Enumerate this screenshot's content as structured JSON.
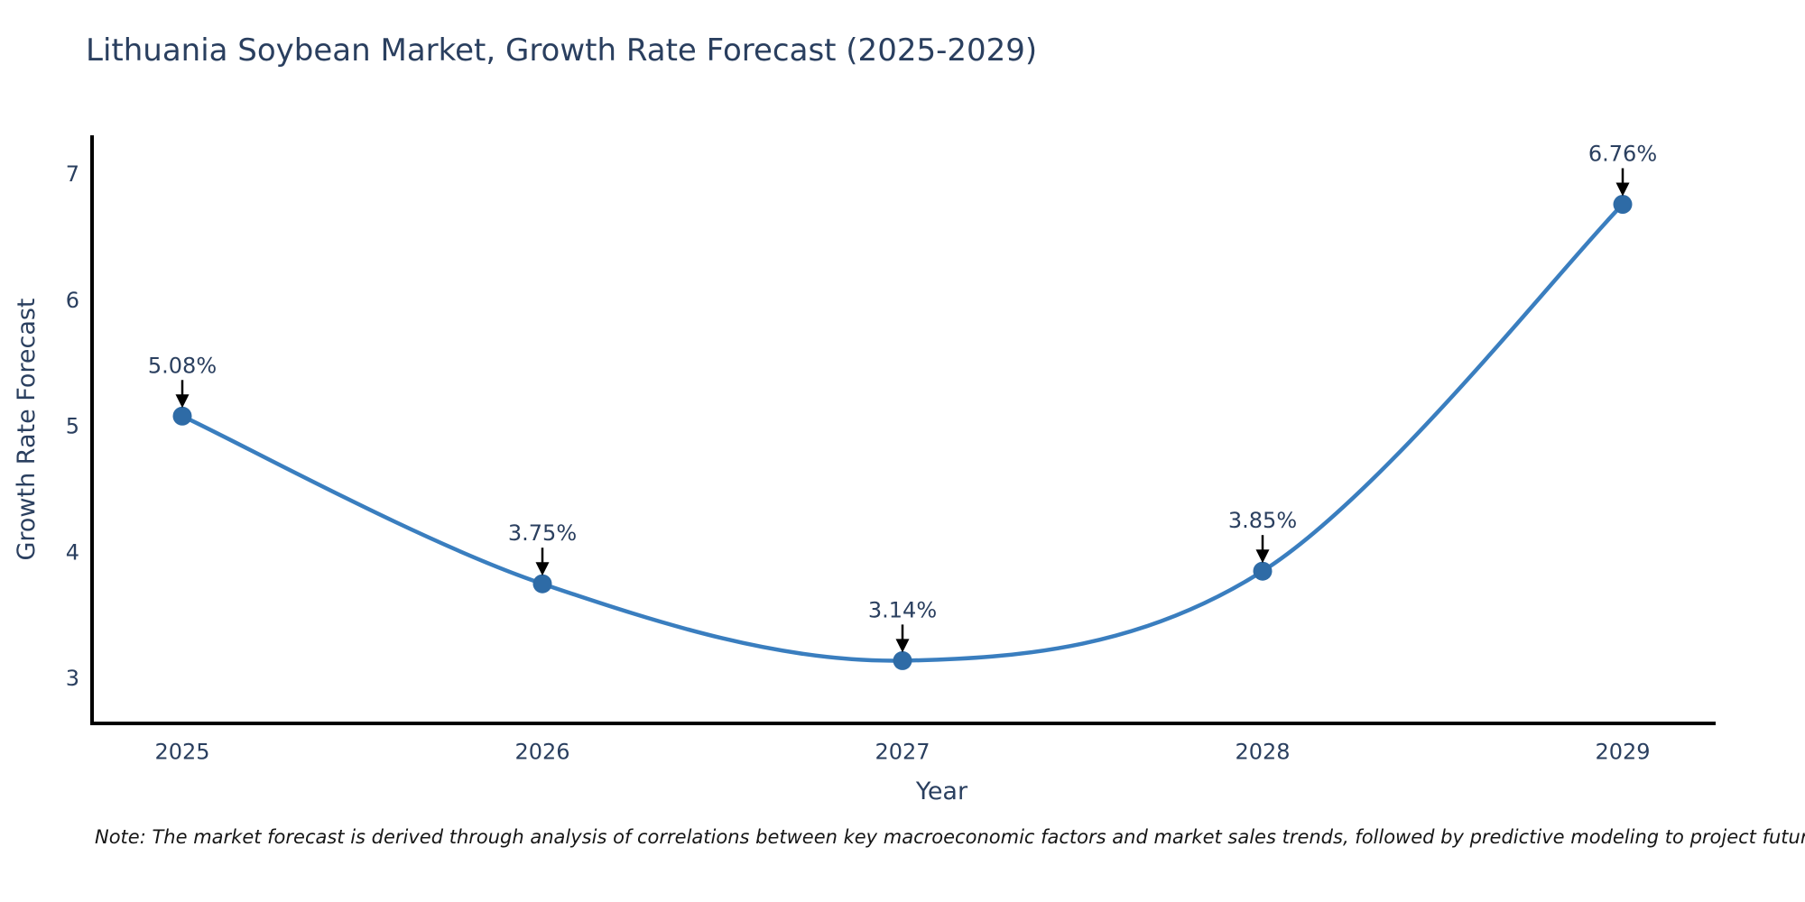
{
  "chart_data": {
    "type": "line",
    "title": "Lithuania Soybean Market, Growth Rate Forecast (2025-2029)",
    "xlabel": "Year",
    "ylabel": "Growth Rate Forecast",
    "x": [
      2025,
      2026,
      2027,
      2028,
      2029
    ],
    "series": [
      {
        "name": "Growth Rate Forecast",
        "values": [
          5.08,
          3.75,
          3.14,
          3.85,
          6.76
        ]
      }
    ],
    "point_labels": [
      "5.08%",
      "3.75%",
      "3.14%",
      "3.85%",
      "6.76%"
    ],
    "xticks": [
      "2025",
      "2026",
      "2027",
      "2028",
      "2029"
    ],
    "yticks": [
      3,
      4,
      5,
      6,
      7
    ],
    "ylim": [
      2.64,
      7.31
    ],
    "grid": false,
    "legend": "none",
    "line_color": "#3a7ebf",
    "marker_color": "#2e6ba6",
    "arrow_color": "#000000",
    "axis_color": "#000000",
    "text_color": "#2a3f5f"
  },
  "note": {
    "text": "Note: The market forecast is derived through analysis of correlations between key macroeconomic factors and market sales trends, followed by predictive modeling to project future sales."
  }
}
